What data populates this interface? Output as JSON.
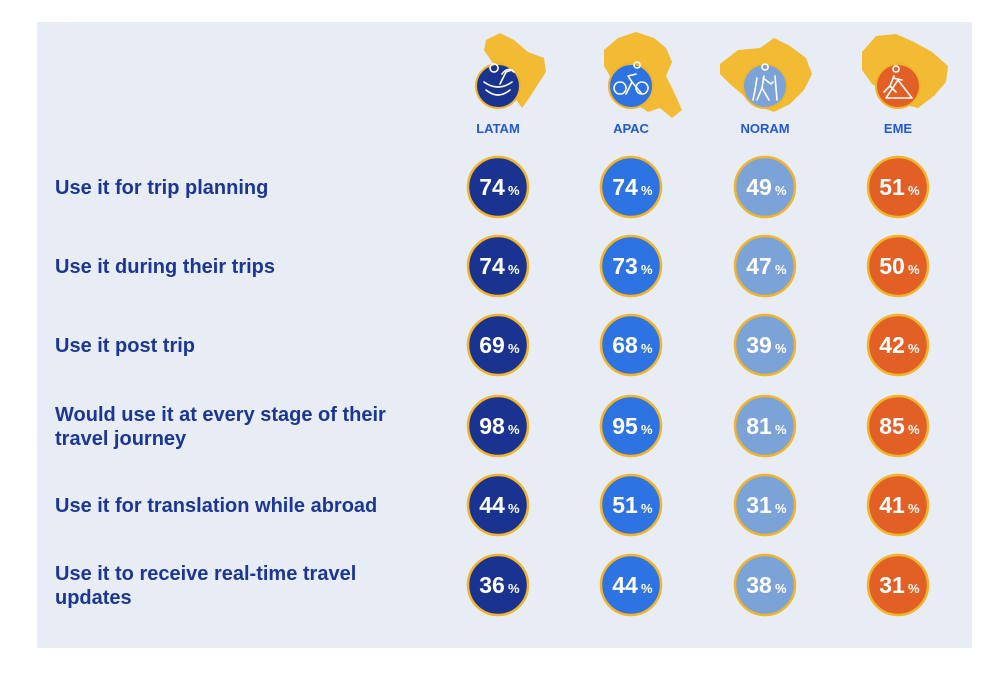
{
  "chart_data": {
    "type": "table",
    "title": "",
    "unit": "%",
    "columns": [
      {
        "name": "LATAM",
        "icon": "kayak-icon",
        "color": "#1a3390",
        "label_color": "#2458d6"
      },
      {
        "name": "APAC",
        "icon": "cyclist-icon",
        "color": "#2e73e2",
        "label_color": "#2458d6"
      },
      {
        "name": "NORAM",
        "icon": "hiker-icon",
        "color": "#7ba3d8",
        "label_color": "#2458d6"
      },
      {
        "name": "EME",
        "icon": "climber-icon",
        "color": "#e25f25",
        "label_color": "#2458d6"
      }
    ],
    "rows": [
      {
        "lines": [
          "Use it for trip planning"
        ],
        "values": [
          74,
          74,
          49,
          51
        ]
      },
      {
        "lines": [
          "Use it during their trips"
        ],
        "values": [
          74,
          73,
          47,
          50
        ]
      },
      {
        "lines": [
          "Use it post trip"
        ],
        "values": [
          69,
          68,
          39,
          42
        ]
      },
      {
        "lines": [
          "Would use it at every stage of their",
          "travel journey"
        ],
        "values": [
          98,
          95,
          81,
          85
        ]
      },
      {
        "lines": [
          "Use it for translation while abroad"
        ],
        "values": [
          44,
          51,
          31,
          41
        ]
      },
      {
        "lines": [
          "Use it to receive real-time travel",
          "updates"
        ],
        "values": [
          36,
          44,
          38,
          31
        ]
      }
    ]
  },
  "colors": {
    "panel": "#e7ecf5",
    "ring": "#f0b52a",
    "map": "#f2bb33",
    "label": "#1b3694"
  }
}
